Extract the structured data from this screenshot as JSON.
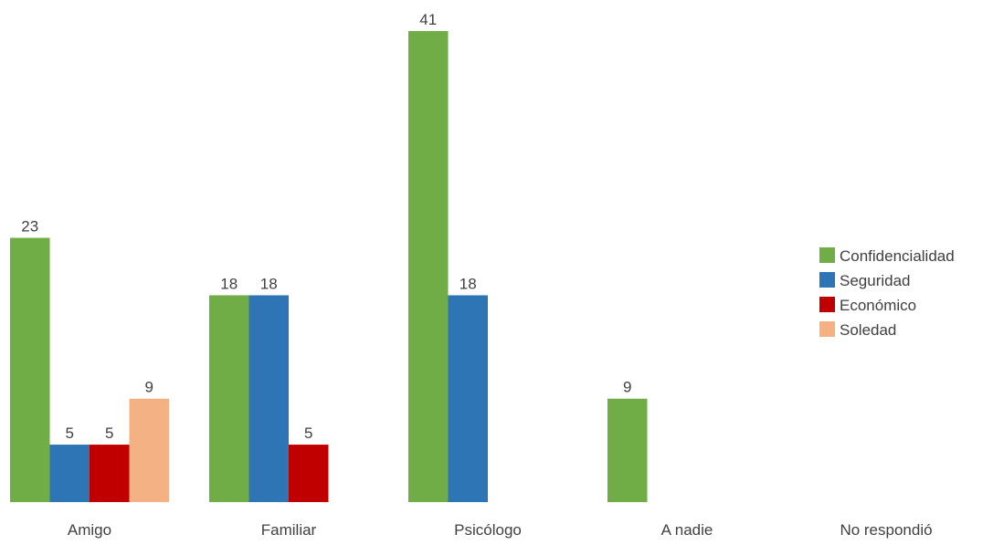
{
  "chart_data": {
    "type": "bar",
    "title": "",
    "xlabel": "",
    "ylabel": "",
    "categories": [
      "Amigo",
      "Familiar",
      "Psicólogo",
      "A nadie",
      "No respondió"
    ],
    "series": [
      {
        "name": "Confidencialidad",
        "color": "#70ad47",
        "values": [
          23,
          18,
          41,
          9,
          null
        ]
      },
      {
        "name": "Seguridad",
        "color": "#2e75b6",
        "values": [
          5,
          18,
          18,
          null,
          null
        ]
      },
      {
        "name": "Económico",
        "color": "#c00000",
        "values": [
          5,
          5,
          null,
          null,
          null
        ]
      },
      {
        "name": "Soledad",
        "color": "#f4b183",
        "values": [
          9,
          null,
          null,
          null,
          null
        ]
      }
    ],
    "ylim": [
      0,
      41
    ],
    "grid": false,
    "legend_position": "right"
  }
}
